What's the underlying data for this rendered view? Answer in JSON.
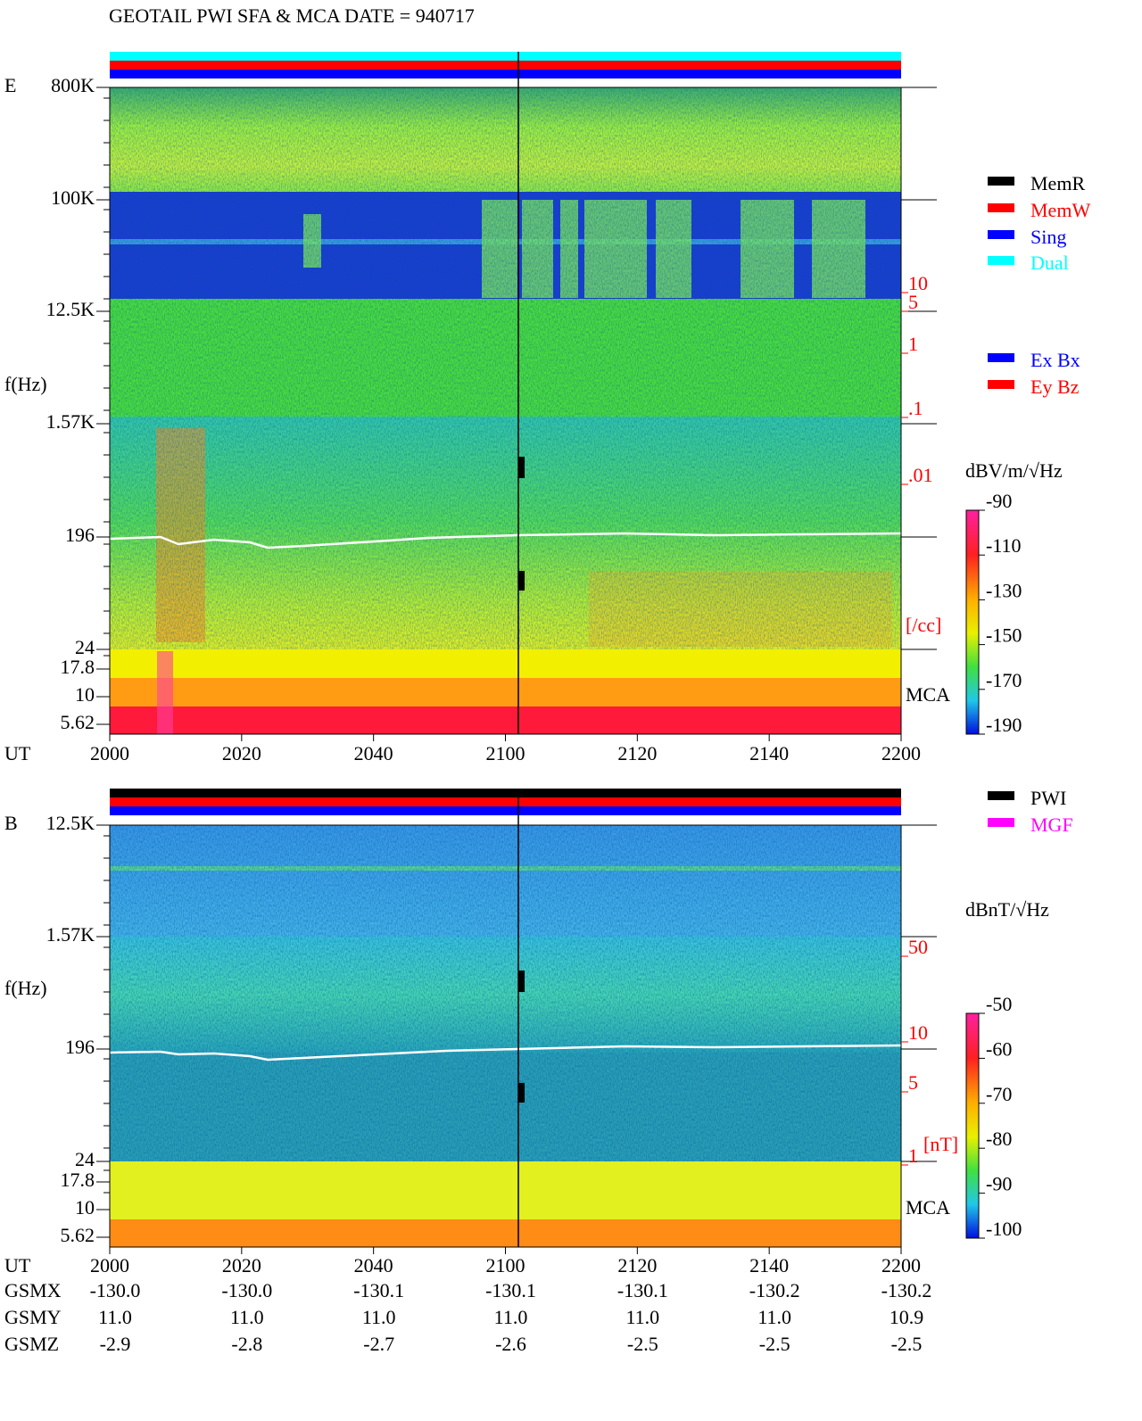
{
  "title": "GEOTAIL  PWI SFA & MCA   DATE = 940717",
  "panel_e": {
    "label": "E",
    "y_label": "f(Hz)",
    "freq_ticks": [
      "800K",
      "100K",
      "12.5K",
      "1.57K",
      "196",
      "24",
      "17.8",
      "10",
      "5.62"
    ],
    "x_label": "UT",
    "x_ticks": [
      "2000",
      "2020",
      "2040",
      "2100",
      "2120",
      "2140",
      "2200"
    ],
    "mca_label": "MCA",
    "density_ticks": [
      "10",
      "5",
      "1",
      ".1",
      ".01"
    ],
    "density_unit": "[/cc]",
    "colorbar_label": "dBV/m/√Hz",
    "colorbar_ticks": [
      -90,
      -110,
      -130,
      -150,
      -170,
      -190
    ],
    "mode_legend": [
      {
        "name": "MemR",
        "color": "#000000"
      },
      {
        "name": "MemW",
        "color": "#ff0000"
      },
      {
        "name": "Sing",
        "color": "#0000ff"
      },
      {
        "name": "Dual",
        "color": "#00ffff"
      }
    ],
    "component_legend": [
      {
        "name": "Ex Bx",
        "color": "#0000ff"
      },
      {
        "name": "Ey Bz",
        "color": "#ff0000"
      }
    ]
  },
  "panel_b": {
    "label": "B",
    "y_label": "f(Hz)",
    "freq_ticks": [
      "12.5K",
      "1.57K",
      "196",
      "24",
      "17.8",
      "10",
      "5.62"
    ],
    "x_label": "UT",
    "x_ticks": [
      "2000",
      "2020",
      "2040",
      "2100",
      "2120",
      "2140",
      "2200"
    ],
    "mca_label": "MCA",
    "density_ticks": [
      "50",
      "10",
      "5",
      "1"
    ],
    "density_unit": "[nT]",
    "colorbar_label": "dBnT/√Hz",
    "colorbar_ticks": [
      -50,
      -60,
      -70,
      -80,
      -90,
      -100
    ],
    "mode_legend": [
      {
        "name": "PWI",
        "color": "#000000"
      },
      {
        "name": "MGF",
        "color": "#ff00ff"
      }
    ]
  },
  "orbit": [
    {
      "name": "GSMX",
      "values": [
        "-130.0",
        "-130.0",
        "-130.1",
        "-130.1",
        "-130.1",
        "-130.2",
        "-130.2"
      ]
    },
    {
      "name": "GSMY",
      "values": [
        "11.0",
        "11.0",
        "11.0",
        "11.0",
        "11.0",
        "11.0",
        "10.9"
      ]
    },
    {
      "name": "GSMZ",
      "values": [
        "-2.9",
        "-2.8",
        "-2.7",
        "-2.6",
        "-2.5",
        "-2.5",
        "-2.5"
      ]
    }
  ]
}
